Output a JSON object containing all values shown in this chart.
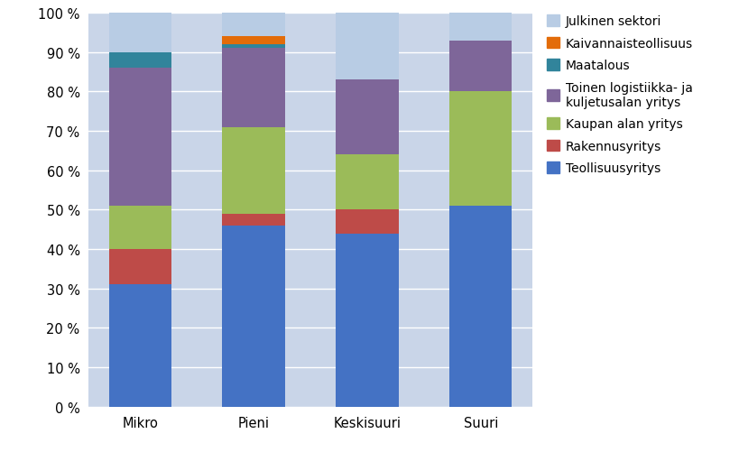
{
  "categories": [
    "Mikro",
    "Pieni",
    "Keskisuuri",
    "Suuri"
  ],
  "series": [
    {
      "label_display": "Teollisuusyritys",
      "values": [
        31,
        46,
        44,
        51
      ],
      "color": "#4472C4"
    },
    {
      "label_display": "Rakennusyritys",
      "values": [
        9,
        3,
        6,
        0
      ],
      "color": "#BE4B48"
    },
    {
      "label_display": "Kaupan alan yritys",
      "values": [
        11,
        22,
        14,
        29
      ],
      "color": "#9BBB59"
    },
    {
      "label_display": "Toinen logistiikka- ja\nkuljetusalan yritys",
      "values": [
        35,
        20,
        19,
        13
      ],
      "color": "#7E6699"
    },
    {
      "label_display": "Maatalous",
      "values": [
        4,
        1,
        0,
        0
      ],
      "color": "#31849B"
    },
    {
      "label_display": "Kaivannaisteollisuus",
      "values": [
        0,
        2,
        0,
        0
      ],
      "color": "#E36C09"
    },
    {
      "label_display": "Julkinen sektori",
      "values": [
        10,
        7,
        17,
        7
      ],
      "color": "#B8CCE4"
    }
  ],
  "ylim": [
    0,
    100
  ],
  "ytick_labels": [
    "0 %",
    "10 %",
    "20 %",
    "30 %",
    "40 %",
    "50 %",
    "60 %",
    "70 %",
    "80 %",
    "90 %",
    "100 %"
  ],
  "plot_bg_color": "#C9D5E8",
  "fig_bg_color": "#FFFFFF",
  "bar_width": 0.55,
  "legend_fontsize": 10,
  "tick_fontsize": 10.5
}
